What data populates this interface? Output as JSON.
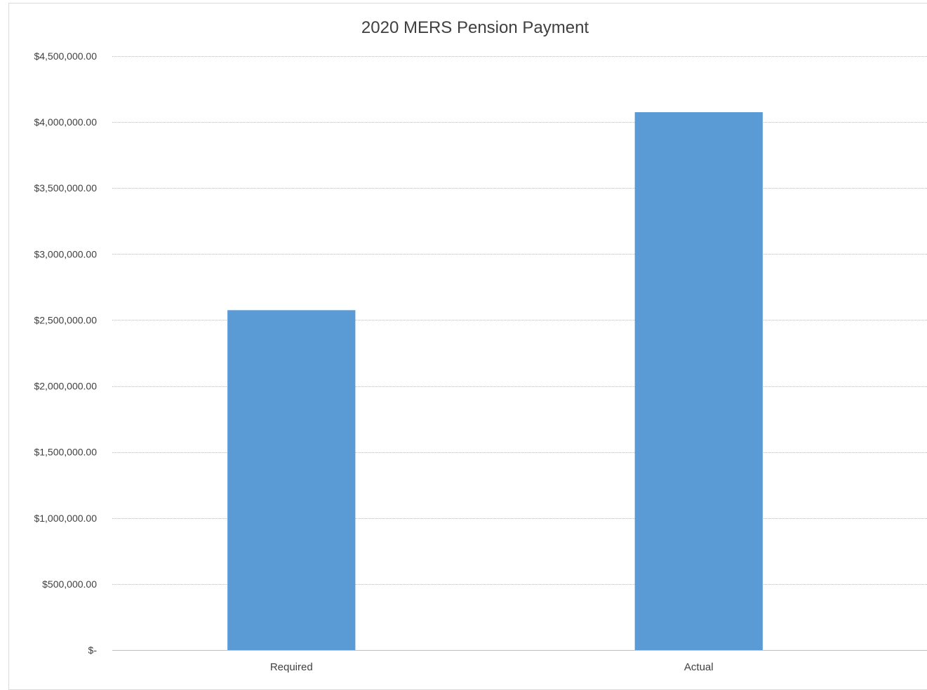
{
  "chart_data": {
    "type": "bar",
    "title": "2020 MERS Pension Payment",
    "xlabel": "",
    "ylabel": "",
    "categories": [
      "Required",
      "Actual"
    ],
    "values": [
      2575000,
      4075000
    ],
    "ylim": [
      0,
      4500000
    ],
    "ytick_values": [
      0,
      500000,
      1000000,
      1500000,
      2000000,
      2500000,
      3000000,
      3500000,
      4000000,
      4500000
    ],
    "ytick_labels": [
      "$-",
      "$500,000.00",
      "$1,000,000.00",
      "$1,500,000.00",
      "$2,000,000.00",
      "$2,500,000.00",
      "$3,000,000.00",
      "$3,500,000.00",
      "$4,000,000.00",
      "$4,500,000.00"
    ],
    "grid": true,
    "legend": "none",
    "bar_color": "#5b9bd5"
  }
}
